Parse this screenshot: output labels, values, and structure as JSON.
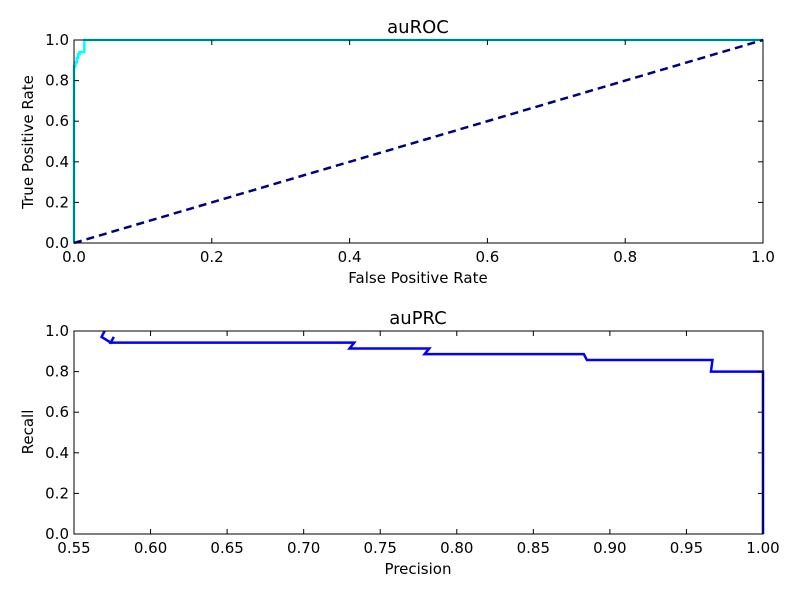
{
  "chart_data": [
    {
      "type": "line",
      "title": "auROC",
      "xlabel": "False Positive Rate",
      "ylabel": "True Positive Rate",
      "xlim": [
        0.0,
        1.0
      ],
      "ylim": [
        0.0,
        1.0
      ],
      "xticks": [
        "0.0",
        "0.2",
        "0.4",
        "0.6",
        "0.8",
        "1.0"
      ],
      "yticks": [
        "0.0",
        "0.2",
        "0.4",
        "0.6",
        "0.8",
        "1.0"
      ],
      "grid": false,
      "series": [
        {
          "color": "#00ffff",
          "style": "solid",
          "x": [
            0.0,
            0.0,
            0.002,
            0.002,
            0.004,
            0.004,
            0.006,
            0.006,
            0.008,
            0.008,
            0.015,
            0.015,
            1.0
          ],
          "y": [
            0.0,
            0.87,
            0.87,
            0.89,
            0.89,
            0.91,
            0.91,
            0.93,
            0.93,
            0.94,
            0.94,
            1.0,
            1.0
          ]
        },
        {
          "color": "#000080",
          "style": "dashed",
          "x": [
            0.0,
            1.0
          ],
          "y": [
            0.0,
            1.0
          ]
        }
      ]
    },
    {
      "type": "line",
      "title": "auPRC",
      "xlabel": "Precision",
      "ylabel": "Recall",
      "xlim": [
        0.55,
        1.0
      ],
      "ylim": [
        0.0,
        1.0
      ],
      "xticks": [
        "0.55",
        "0.60",
        "0.65",
        "0.70",
        "0.75",
        "0.80",
        "0.85",
        "0.90",
        "0.95",
        "1.00"
      ],
      "yticks": [
        "0.0",
        "0.2",
        "0.4",
        "0.6",
        "0.8",
        "1.0"
      ],
      "grid": false,
      "series": [
        {
          "color": "#0000ff",
          "style": "solid",
          "x": [
            1.0,
            1.0,
            0.966,
            0.967,
            0.885,
            0.883,
            0.779,
            0.782,
            0.73,
            0.733,
            0.574,
            0.576,
            0.574,
            0.568,
            0.57,
            0.57
          ],
          "y": [
            0.0,
            0.8,
            0.8,
            0.857,
            0.857,
            0.886,
            0.886,
            0.914,
            0.914,
            0.943,
            0.943,
            0.971,
            0.943,
            0.971,
            1.0,
            1.0
          ]
        }
      ]
    }
  ]
}
